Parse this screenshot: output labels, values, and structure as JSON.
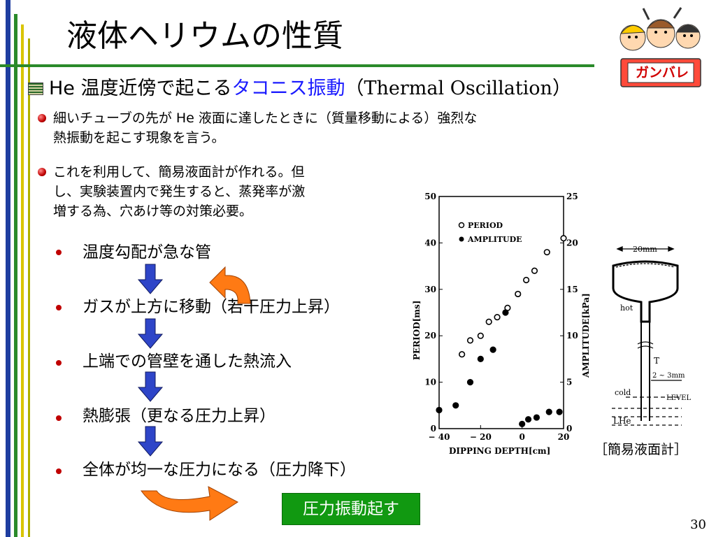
{
  "slide": {
    "title": "液体ヘリウムの性質",
    "subtitle_prefix": "He 温度近傍で起こる",
    "subtitle_highlight": "タコニス振動",
    "subtitle_suffix": "（Thermal Oscillation）",
    "bullet1_line1": "細いチューブの先が He 液面に達したときに（質量移動による）強烈な",
    "bullet1_line2": "熱振動を起こす現象を言う。",
    "bullet2_line1": "これを利用して、簡易液面計が作れる。但",
    "bullet2_line2": "し、実験装置内で発生すると、蒸発率が激",
    "bullet2_line3": "増する為、穴あけ等の対策必要。",
    "steps": [
      "温度勾配が急な管",
      "ガスが上方に移動（若干圧力上昇）",
      "上端での管壁を通した熱流入",
      "熱膨張（更なる圧力上昇）",
      "全体が均一な圧力になる（圧力降下）"
    ],
    "result_button": "圧力振動起す",
    "page_number": "30",
    "diagram_caption": "［簡易液面計］",
    "mascot_label": "ガンバレ"
  },
  "diagram": {
    "width_label": "20mm",
    "hot": "hot",
    "cold": "cold",
    "T": "T",
    "bore": "2 ~ 3mm",
    "level": "LEVEL",
    "lhe": "LHe"
  },
  "chart_data": {
    "type": "scatter",
    "xlabel": "DIPPING DEPTH[cm]",
    "ylabel": "PERIOD[ms]",
    "y2label": "AMPLITUDE[kPa]",
    "xlim": [
      -40,
      20
    ],
    "ylim": [
      0,
      50
    ],
    "y2lim": [
      0,
      25
    ],
    "xticks": [
      "− 40",
      "− 20",
      "0",
      "20"
    ],
    "yticks": [
      "0",
      "10",
      "20",
      "30",
      "40",
      "50"
    ],
    "y2ticks": [
      "0",
      "5",
      "10",
      "15",
      "20",
      "25"
    ],
    "series": [
      {
        "name": "PERIOD",
        "axis": "left",
        "x": [
          -29,
          -25,
          -20,
          -16,
          -12,
          -7,
          -2,
          2,
          6,
          12,
          20
        ],
        "y": [
          16,
          19,
          20,
          23,
          24,
          26,
          29,
          32,
          34,
          38,
          41
        ]
      },
      {
        "name": "AMPLITUDE",
        "axis": "right",
        "x": [
          -40,
          -32,
          -25,
          -20,
          -14,
          -8,
          0,
          3,
          7,
          13,
          18
        ],
        "y": [
          2,
          2.5,
          5,
          7.5,
          8.5,
          12.5,
          0.5,
          1,
          1.2,
          1.8,
          1.8
        ]
      }
    ]
  }
}
